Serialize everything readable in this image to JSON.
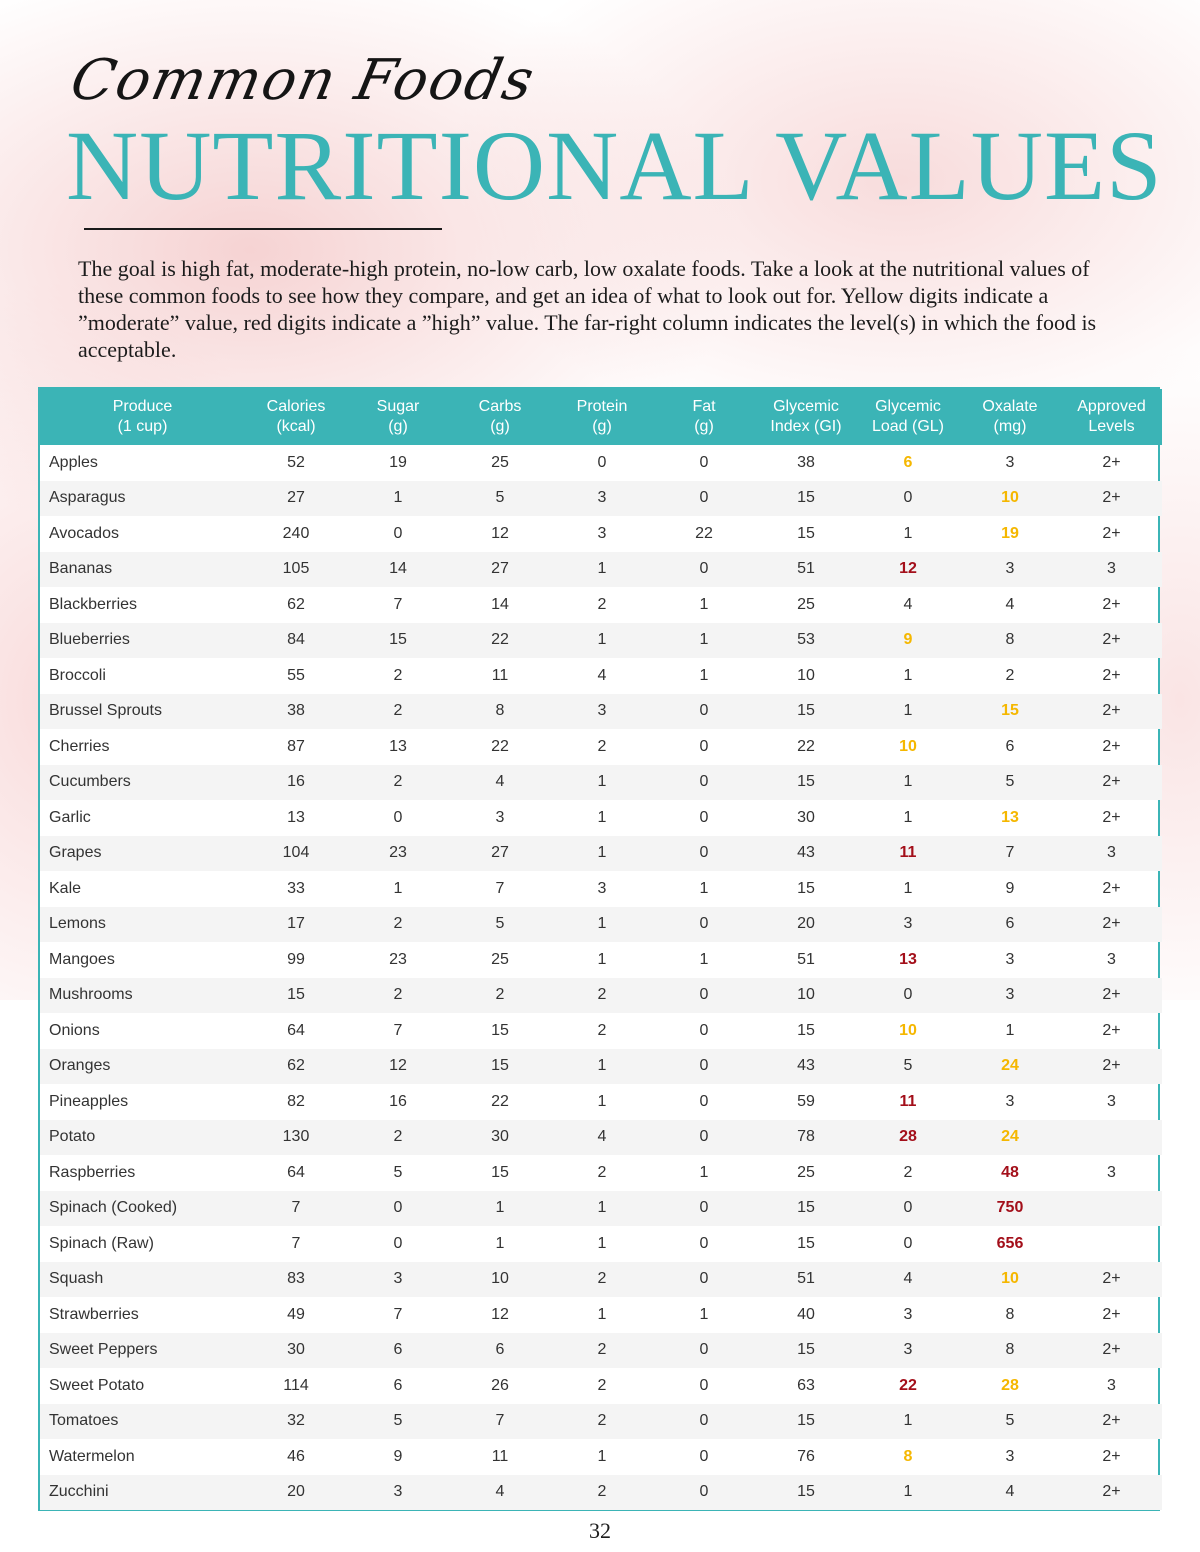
{
  "header": {
    "script_title": "Common Foods",
    "main_title": "NUTRITIONAL VALUES",
    "intro": "The goal is high fat, moderate-high protein, no-low carb, low oxalate foods. Take a look at the nutritional values of these common foods to see how they compare, and get an idea of what to look out for. Yellow digits indicate a ”moderate” value, red digits indicate a ”high” value. The far-right column indicates the level(s) in which the food is acceptable."
  },
  "colors": {
    "accent": "#3bb4b6",
    "moderate": "#f5b700",
    "high": "#a30f1a"
  },
  "table": {
    "columns": [
      [
        "Produce",
        "(1 cup)"
      ],
      [
        "Calories",
        "(kcal)"
      ],
      [
        "Sugar",
        "(g)"
      ],
      [
        "Carbs",
        "(g)"
      ],
      [
        "Protein",
        "(g)"
      ],
      [
        "Fat",
        "(g)"
      ],
      [
        "Glycemic",
        "Index (GI)"
      ],
      [
        "Glycemic",
        "Load (GL)"
      ],
      [
        "Oxalate",
        "(mg)"
      ],
      [
        "Approved",
        "Levels"
      ]
    ],
    "rows": [
      {
        "name": "Apples",
        "calories": "52",
        "sugar": "19",
        "carbs": "25",
        "protein": "0",
        "fat": "0",
        "gi": "38",
        "gl": "6",
        "gl_level": "moderate",
        "oxalate": "3",
        "oxalate_level": "",
        "levels": "2+"
      },
      {
        "name": "Asparagus",
        "calories": "27",
        "sugar": "1",
        "carbs": "5",
        "protein": "3",
        "fat": "0",
        "gi": "15",
        "gl": "0",
        "gl_level": "",
        "oxalate": "10",
        "oxalate_level": "moderate",
        "levels": "2+"
      },
      {
        "name": "Avocados",
        "calories": "240",
        "sugar": "0",
        "carbs": "12",
        "protein": "3",
        "fat": "22",
        "gi": "15",
        "gl": "1",
        "gl_level": "",
        "oxalate": "19",
        "oxalate_level": "moderate",
        "levels": "2+"
      },
      {
        "name": "Bananas",
        "calories": "105",
        "sugar": "14",
        "carbs": "27",
        "protein": "1",
        "fat": "0",
        "gi": "51",
        "gl": "12",
        "gl_level": "high",
        "oxalate": "3",
        "oxalate_level": "",
        "levels": "3"
      },
      {
        "name": "Blackberries",
        "calories": "62",
        "sugar": "7",
        "carbs": "14",
        "protein": "2",
        "fat": "1",
        "gi": "25",
        "gl": "4",
        "gl_level": "",
        "oxalate": "4",
        "oxalate_level": "",
        "levels": "2+"
      },
      {
        "name": "Blueberries",
        "calories": "84",
        "sugar": "15",
        "carbs": "22",
        "protein": "1",
        "fat": "1",
        "gi": "53",
        "gl": "9",
        "gl_level": "moderate",
        "oxalate": "8",
        "oxalate_level": "",
        "levels": "2+"
      },
      {
        "name": "Broccoli",
        "calories": "55",
        "sugar": "2",
        "carbs": "11",
        "protein": "4",
        "fat": "1",
        "gi": "10",
        "gl": "1",
        "gl_level": "",
        "oxalate": "2",
        "oxalate_level": "",
        "levels": "2+"
      },
      {
        "name": "Brussel Sprouts",
        "calories": "38",
        "sugar": "2",
        "carbs": "8",
        "protein": "3",
        "fat": "0",
        "gi": "15",
        "gl": "1",
        "gl_level": "",
        "oxalate": "15",
        "oxalate_level": "moderate",
        "levels": "2+"
      },
      {
        "name": "Cherries",
        "calories": "87",
        "sugar": "13",
        "carbs": "22",
        "protein": "2",
        "fat": "0",
        "gi": "22",
        "gl": "10",
        "gl_level": "moderate",
        "oxalate": "6",
        "oxalate_level": "",
        "levels": "2+"
      },
      {
        "name": "Cucumbers",
        "calories": "16",
        "sugar": "2",
        "carbs": "4",
        "protein": "1",
        "fat": "0",
        "gi": "15",
        "gl": "1",
        "gl_level": "",
        "oxalate": "5",
        "oxalate_level": "",
        "levels": "2+"
      },
      {
        "name": "Garlic",
        "calories": "13",
        "sugar": "0",
        "carbs": "3",
        "protein": "1",
        "fat": "0",
        "gi": "30",
        "gl": "1",
        "gl_level": "",
        "oxalate": "13",
        "oxalate_level": "moderate",
        "levels": "2+"
      },
      {
        "name": "Grapes",
        "calories": "104",
        "sugar": "23",
        "carbs": "27",
        "protein": "1",
        "fat": "0",
        "gi": "43",
        "gl": "11",
        "gl_level": "high",
        "oxalate": "7",
        "oxalate_level": "",
        "levels": "3"
      },
      {
        "name": "Kale",
        "calories": "33",
        "sugar": "1",
        "carbs": "7",
        "protein": "3",
        "fat": "1",
        "gi": "15",
        "gl": "1",
        "gl_level": "",
        "oxalate": "9",
        "oxalate_level": "",
        "levels": "2+"
      },
      {
        "name": "Lemons",
        "calories": "17",
        "sugar": "2",
        "carbs": "5",
        "protein": "1",
        "fat": "0",
        "gi": "20",
        "gl": "3",
        "gl_level": "",
        "oxalate": "6",
        "oxalate_level": "",
        "levels": "2+"
      },
      {
        "name": "Mangoes",
        "calories": "99",
        "sugar": "23",
        "carbs": "25",
        "protein": "1",
        "fat": "1",
        "gi": "51",
        "gl": "13",
        "gl_level": "high",
        "oxalate": "3",
        "oxalate_level": "",
        "levels": "3"
      },
      {
        "name": "Mushrooms",
        "calories": "15",
        "sugar": "2",
        "carbs": "2",
        "protein": "2",
        "fat": "0",
        "gi": "10",
        "gl": "0",
        "gl_level": "",
        "oxalate": "3",
        "oxalate_level": "",
        "levels": "2+"
      },
      {
        "name": "Onions",
        "calories": "64",
        "sugar": "7",
        "carbs": "15",
        "protein": "2",
        "fat": "0",
        "gi": "15",
        "gl": "10",
        "gl_level": "moderate",
        "oxalate": "1",
        "oxalate_level": "",
        "levels": "2+"
      },
      {
        "name": "Oranges",
        "calories": "62",
        "sugar": "12",
        "carbs": "15",
        "protein": "1",
        "fat": "0",
        "gi": "43",
        "gl": "5",
        "gl_level": "",
        "oxalate": "24",
        "oxalate_level": "moderate",
        "levels": "2+"
      },
      {
        "name": "Pineapples",
        "calories": "82",
        "sugar": "16",
        "carbs": "22",
        "protein": "1",
        "fat": "0",
        "gi": "59",
        "gl": "11",
        "gl_level": "high",
        "oxalate": "3",
        "oxalate_level": "",
        "levels": "3"
      },
      {
        "name": "Potato",
        "calories": "130",
        "sugar": "2",
        "carbs": "30",
        "protein": "4",
        "fat": "0",
        "gi": "78",
        "gl": "28",
        "gl_level": "high",
        "oxalate": "24",
        "oxalate_level": "moderate",
        "levels": ""
      },
      {
        "name": "Raspberries",
        "calories": "64",
        "sugar": "5",
        "carbs": "15",
        "protein": "2",
        "fat": "1",
        "gi": "25",
        "gl": "2",
        "gl_level": "",
        "oxalate": "48",
        "oxalate_level": "high",
        "levels": "3"
      },
      {
        "name": "Spinach (Cooked)",
        "calories": "7",
        "sugar": "0",
        "carbs": "1",
        "protein": "1",
        "fat": "0",
        "gi": "15",
        "gl": "0",
        "gl_level": "",
        "oxalate": "750",
        "oxalate_level": "high",
        "levels": ""
      },
      {
        "name": "Spinach (Raw)",
        "calories": "7",
        "sugar": "0",
        "carbs": "1",
        "protein": "1",
        "fat": "0",
        "gi": "15",
        "gl": "0",
        "gl_level": "",
        "oxalate": "656",
        "oxalate_level": "high",
        "levels": ""
      },
      {
        "name": "Squash",
        "calories": "83",
        "sugar": "3",
        "carbs": "10",
        "protein": "2",
        "fat": "0",
        "gi": "51",
        "gl": "4",
        "gl_level": "",
        "oxalate": "10",
        "oxalate_level": "moderate",
        "levels": "2+"
      },
      {
        "name": "Strawberries",
        "calories": "49",
        "sugar": "7",
        "carbs": "12",
        "protein": "1",
        "fat": "1",
        "gi": "40",
        "gl": "3",
        "gl_level": "",
        "oxalate": "8",
        "oxalate_level": "",
        "levels": "2+"
      },
      {
        "name": "Sweet Peppers",
        "calories": "30",
        "sugar": "6",
        "carbs": "6",
        "protein": "2",
        "fat": "0",
        "gi": "15",
        "gl": "3",
        "gl_level": "",
        "oxalate": "8",
        "oxalate_level": "",
        "levels": "2+"
      },
      {
        "name": "Sweet Potato",
        "calories": "114",
        "sugar": "6",
        "carbs": "26",
        "protein": "2",
        "fat": "0",
        "gi": "63",
        "gl": "22",
        "gl_level": "high",
        "oxalate": "28",
        "oxalate_level": "moderate",
        "levels": "3"
      },
      {
        "name": "Tomatoes",
        "calories": "32",
        "sugar": "5",
        "carbs": "7",
        "protein": "2",
        "fat": "0",
        "gi": "15",
        "gl": "1",
        "gl_level": "",
        "oxalate": "5",
        "oxalate_level": "",
        "levels": "2+"
      },
      {
        "name": "Watermelon",
        "calories": "46",
        "sugar": "9",
        "carbs": "11",
        "protein": "1",
        "fat": "0",
        "gi": "76",
        "gl": "8",
        "gl_level": "moderate",
        "oxalate": "3",
        "oxalate_level": "",
        "levels": "2+"
      },
      {
        "name": "Zucchini",
        "calories": "20",
        "sugar": "3",
        "carbs": "4",
        "protein": "2",
        "fat": "0",
        "gi": "15",
        "gl": "1",
        "gl_level": "",
        "oxalate": "4",
        "oxalate_level": "",
        "levels": "2+"
      }
    ]
  },
  "footer": {
    "page_number": "32"
  }
}
